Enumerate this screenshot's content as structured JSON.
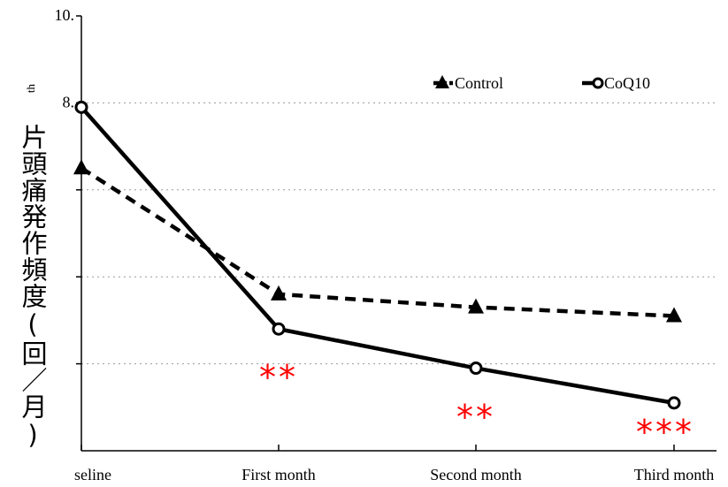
{
  "chart_data": {
    "type": "line",
    "categories": [
      "seline",
      "First month",
      "Second month",
      "Third month"
    ],
    "series": [
      {
        "name": "Control",
        "values": [
          6.5,
          3.6,
          3.3,
          3.1
        ],
        "style": "dashed",
        "marker": "triangle",
        "color": "#000000"
      },
      {
        "name": "CoQ10",
        "values": [
          7.9,
          2.8,
          1.9,
          1.1
        ],
        "style": "solid",
        "marker": "circle",
        "color": "#000000"
      }
    ],
    "ylim": [
      0,
      10
    ],
    "yticks": [
      {
        "value": 10,
        "label": "10."
      },
      {
        "value": 8,
        "label": "8."
      },
      {
        "value": 6,
        "label": ""
      },
      {
        "value": 4,
        "label": ""
      },
      {
        "value": 2,
        "label": ""
      }
    ],
    "ylabel": "片頭痛発作頻度(回／月)",
    "ylabel_fragment": "th",
    "significance": [
      {
        "category": "First month",
        "text": "**"
      },
      {
        "category": "Second month",
        "text": "**"
      },
      {
        "category": "Third month",
        "text": "***"
      }
    ],
    "significance_color": "#ff0000",
    "legend": "top-right",
    "grid": "dotted-horizontal"
  }
}
